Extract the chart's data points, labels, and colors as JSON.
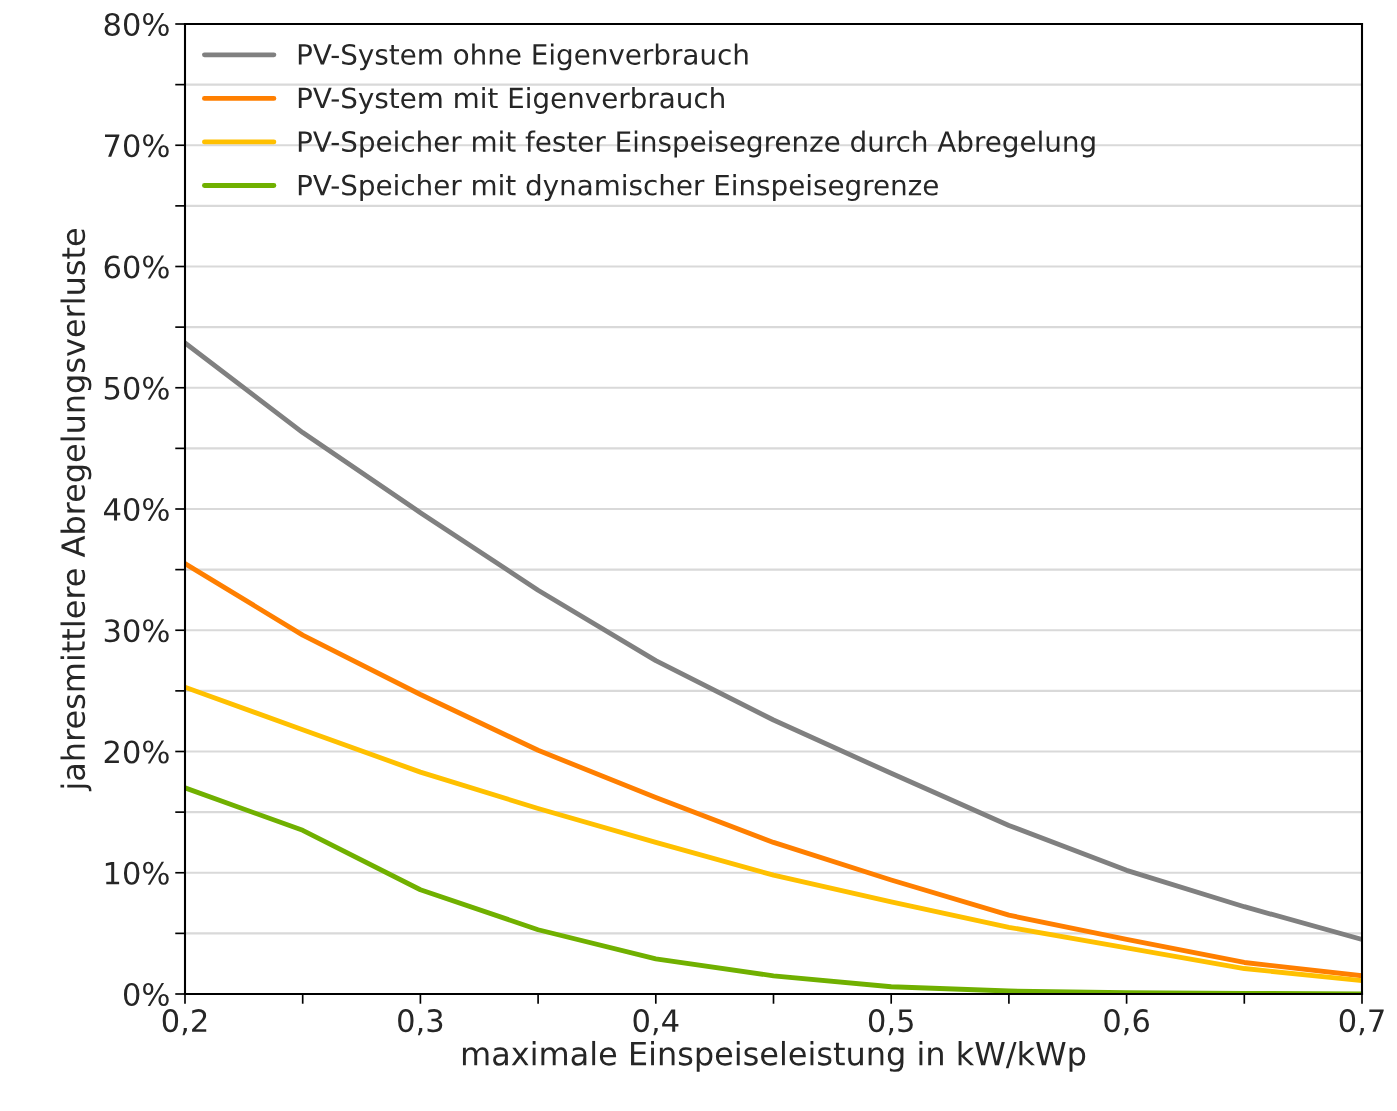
{
  "chart_data": {
    "type": "line",
    "xlabel": "maximale Einspeiseleistung in kW/kWp",
    "ylabel": "jahresmittlere Abregelungsverluste",
    "x": [
      0.2,
      0.25,
      0.3,
      0.35,
      0.4,
      0.45,
      0.5,
      0.55,
      0.6,
      0.65,
      0.7
    ],
    "series": [
      {
        "name": "PV-System ohne Eigenverbrauch",
        "color": "#808080",
        "values": [
          53.7,
          46.3,
          39.7,
          33.3,
          27.5,
          22.6,
          18.2,
          13.9,
          10.2,
          7.2,
          4.5
        ]
      },
      {
        "name": "PV-System mit Eigenverbrauch",
        "color": "#ff7f00",
        "values": [
          35.5,
          29.6,
          24.7,
          20.1,
          16.2,
          12.5,
          9.4,
          6.5,
          4.5,
          2.6,
          1.5
        ]
      },
      {
        "name": "PV-Speicher mit fester Einspeisegrenze durch Abregelung",
        "color": "#ffc000",
        "values": [
          25.3,
          21.8,
          18.3,
          15.3,
          12.5,
          9.8,
          7.6,
          5.5,
          3.8,
          2.1,
          1.1
        ]
      },
      {
        "name": "PV-Speicher mit dynamischer Einspeisegrenze",
        "color": "#70b000",
        "values": [
          17,
          13.5,
          8.6,
          5.3,
          2.9,
          1.5,
          0.6,
          0.25,
          0.1,
          0.05,
          0
        ]
      }
    ],
    "xlim": [
      0.2,
      0.7
    ],
    "xticks": [
      {
        "value": 0.2,
        "label": "0,2"
      },
      {
        "value": 0.25,
        "label": null
      },
      {
        "value": 0.3,
        "label": "0,3"
      },
      {
        "value": 0.35,
        "label": null
      },
      {
        "value": 0.4,
        "label": "0,4"
      },
      {
        "value": 0.45,
        "label": null
      },
      {
        "value": 0.5,
        "label": "0,5"
      },
      {
        "value": 0.55,
        "label": null
      },
      {
        "value": 0.6,
        "label": "0,6"
      },
      {
        "value": 0.65,
        "label": null
      },
      {
        "value": 0.7,
        "label": "0,7"
      }
    ],
    "ylim": [
      0,
      80
    ],
    "yticks": [
      {
        "value": 0,
        "label": "0%"
      },
      {
        "value": 5,
        "label": null
      },
      {
        "value": 10,
        "label": "10%"
      },
      {
        "value": 15,
        "label": null
      },
      {
        "value": 20,
        "label": "20%"
      },
      {
        "value": 25,
        "label": null
      },
      {
        "value": 30,
        "label": "30%"
      },
      {
        "value": 35,
        "label": null
      },
      {
        "value": 40,
        "label": "40%"
      },
      {
        "value": 45,
        "label": null
      },
      {
        "value": 50,
        "label": "50%"
      },
      {
        "value": 55,
        "label": null
      },
      {
        "value": 60,
        "label": "60%"
      },
      {
        "value": 65,
        "label": null
      },
      {
        "value": 70,
        "label": "70%"
      },
      {
        "value": 75,
        "label": null
      },
      {
        "value": 80,
        "label": "80%"
      }
    ],
    "grid": "y",
    "legend": "top left",
    "marker": "none",
    "line_style": "solid"
  }
}
